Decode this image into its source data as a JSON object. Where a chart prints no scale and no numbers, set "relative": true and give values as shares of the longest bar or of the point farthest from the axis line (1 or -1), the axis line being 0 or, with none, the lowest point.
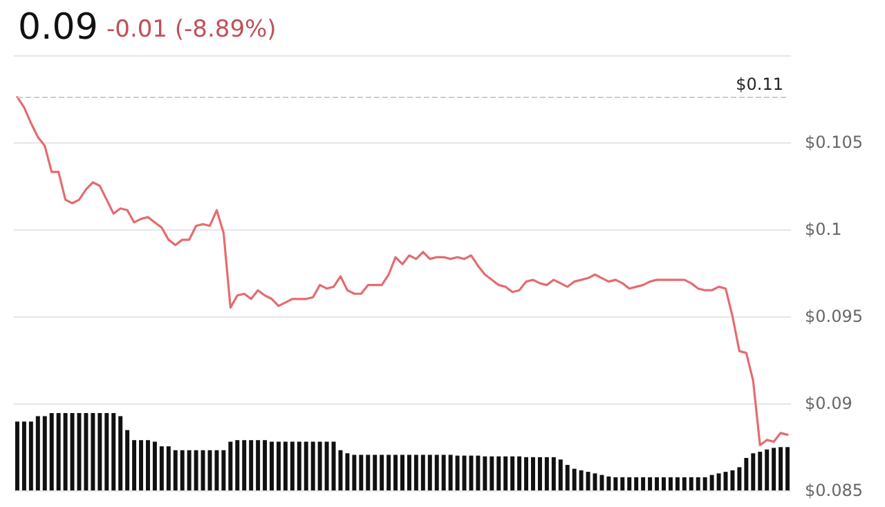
{
  "chart_data": [
    {
      "type": "line",
      "title": "0.09",
      "subtitle": "-0.01 (-8.89%)",
      "categories": [
        null,
        null,
        null,
        null,
        null,
        null,
        null,
        null,
        null,
        null,
        null,
        null,
        null,
        null,
        null,
        null,
        null,
        null,
        null,
        null,
        null,
        null,
        null,
        null,
        null,
        null,
        null,
        null,
        null,
        null,
        null,
        null,
        null,
        null,
        null,
        null,
        null,
        null,
        null,
        null,
        null,
        null,
        null,
        null,
        null,
        null,
        null,
        null,
        null,
        null,
        null,
        null,
        null,
        null,
        null,
        null,
        null,
        null,
        null,
        null,
        null,
        null,
        null,
        null,
        null,
        null,
        null,
        null,
        null,
        null,
        null,
        null,
        null,
        null,
        null,
        null,
        null,
        null,
        null,
        null,
        null,
        null,
        null,
        null,
        null,
        null,
        null,
        null,
        null,
        null,
        null,
        null,
        null,
        null,
        null,
        null,
        null,
        null,
        null,
        null,
        null,
        null,
        null,
        null,
        null,
        null,
        null,
        null,
        null,
        null,
        null,
        null,
        null
      ],
      "series": [
        {
          "type": "line",
          "color": "#e56b6f",
          "values": [
            0.1076,
            0.107,
            0.1061,
            0.1053,
            0.1048,
            0.1033,
            0.1033,
            0.1017,
            0.1015,
            0.1017,
            0.1023,
            0.1027,
            0.1025,
            0.1017,
            0.1009,
            0.1012,
            0.1011,
            0.1004,
            0.1006,
            0.1007,
            0.1004,
            0.1001,
            0.0994,
            0.0991,
            0.0994,
            0.0994,
            0.1002,
            0.1003,
            0.1002,
            0.1011,
            0.0998,
            0.0955,
            0.0962,
            0.0963,
            0.096,
            0.0965,
            0.0962,
            0.096,
            0.0956,
            0.0958,
            0.096,
            0.096,
            0.096,
            0.0961,
            0.0968,
            0.0966,
            0.0967,
            0.0973,
            0.0965,
            0.0963,
            0.0963,
            0.0968,
            0.0968,
            0.0968,
            0.0974,
            0.0984,
            0.098,
            0.0985,
            0.0983,
            0.0987,
            0.0983,
            0.0984,
            0.0984,
            0.0983,
            0.0984,
            0.0983,
            0.0985,
            0.0979,
            0.0974,
            0.0971,
            0.0968,
            0.0967,
            0.0964,
            0.0965,
            0.097,
            0.0971,
            0.0969,
            0.0968,
            0.0971,
            0.0969,
            0.0967,
            0.097,
            0.0971,
            0.0972,
            0.0974,
            0.0972,
            0.097,
            0.0971,
            0.0969,
            0.0966,
            0.0967,
            0.0968,
            0.097,
            0.0971,
            0.0971,
            0.0971,
            0.0971,
            0.0971,
            0.0969,
            0.0966,
            0.0965,
            0.0965,
            0.0967,
            0.0966,
            0.095,
            0.093,
            0.0929,
            0.0913,
            0.0876,
            0.0879,
            0.0878,
            0.0883,
            0.0882
          ]
        }
      ],
      "ylim": [
        0.085,
        0.11
      ],
      "yticks": [
        {
          "value": 0.085,
          "label": "$0.085"
        },
        {
          "value": 0.09,
          "label": "$0.09"
        },
        {
          "value": 0.095,
          "label": "$0.095"
        },
        {
          "value": 0.1,
          "label": "$0.1"
        },
        {
          "value": 0.105,
          "label": "$0.105"
        },
        {
          "value": 0.11,
          "label": null
        }
      ],
      "ref_lines": [
        {
          "axis": "y",
          "value": 0.1076,
          "label": "$0.11",
          "color": "#cccccc",
          "line_style": "dashed"
        }
      ],
      "grid": "y",
      "tick_labels": "y",
      "line_style": "solid"
    },
    {
      "type": "bar",
      "relative": true,
      "tick_labels": false,
      "categories": [
        null,
        null,
        null,
        null,
        null,
        null,
        null,
        null,
        null,
        null,
        null,
        null,
        null,
        null,
        null,
        null,
        null,
        null,
        null,
        null,
        null,
        null,
        null,
        null,
        null,
        null,
        null,
        null,
        null,
        null,
        null,
        null,
        null,
        null,
        null,
        null,
        null,
        null,
        null,
        null,
        null,
        null,
        null,
        null,
        null,
        null,
        null,
        null,
        null,
        null,
        null,
        null,
        null,
        null,
        null,
        null,
        null,
        null,
        null,
        null,
        null,
        null,
        null,
        null,
        null,
        null,
        null,
        null,
        null,
        null,
        null,
        null,
        null,
        null,
        null,
        null,
        null,
        null,
        null,
        null,
        null,
        null,
        null,
        null,
        null,
        null,
        null,
        null,
        null,
        null,
        null,
        null,
        null,
        null,
        null,
        null,
        null,
        null,
        null,
        null,
        null,
        null,
        null,
        null,
        null,
        null,
        null,
        null,
        null,
        null,
        null,
        null,
        null
      ],
      "series": [
        {
          "color": "#111111",
          "values": [
            0.89,
            0.89,
            0.89,
            0.96,
            0.96,
            1,
            1,
            1,
            1,
            1,
            1,
            1,
            1,
            1,
            1,
            0.96,
            0.78,
            0.65,
            0.65,
            0.65,
            0.63,
            0.57,
            0.57,
            0.52,
            0.52,
            0.52,
            0.52,
            0.52,
            0.52,
            0.52,
            0.52,
            0.63,
            0.65,
            0.65,
            0.65,
            0.65,
            0.65,
            0.63,
            0.63,
            0.63,
            0.63,
            0.63,
            0.63,
            0.63,
            0.63,
            0.63,
            0.63,
            0.52,
            0.48,
            0.46,
            0.46,
            0.46,
            0.46,
            0.46,
            0.46,
            0.46,
            0.46,
            0.46,
            0.46,
            0.46,
            0.46,
            0.46,
            0.46,
            0.46,
            0.45,
            0.45,
            0.45,
            0.45,
            0.44,
            0.44,
            0.44,
            0.44,
            0.44,
            0.44,
            0.43,
            0.43,
            0.43,
            0.43,
            0.43,
            0.4,
            0.33,
            0.28,
            0.26,
            0.24,
            0.22,
            0.2,
            0.18,
            0.17,
            0.17,
            0.17,
            0.17,
            0.17,
            0.17,
            0.17,
            0.17,
            0.17,
            0.17,
            0.17,
            0.17,
            0.17,
            0.17,
            0.2,
            0.22,
            0.24,
            0.26,
            0.3,
            0.42,
            0.48,
            0.5,
            0.53,
            0.55,
            0.56,
            0.56
          ]
        }
      ]
    }
  ]
}
